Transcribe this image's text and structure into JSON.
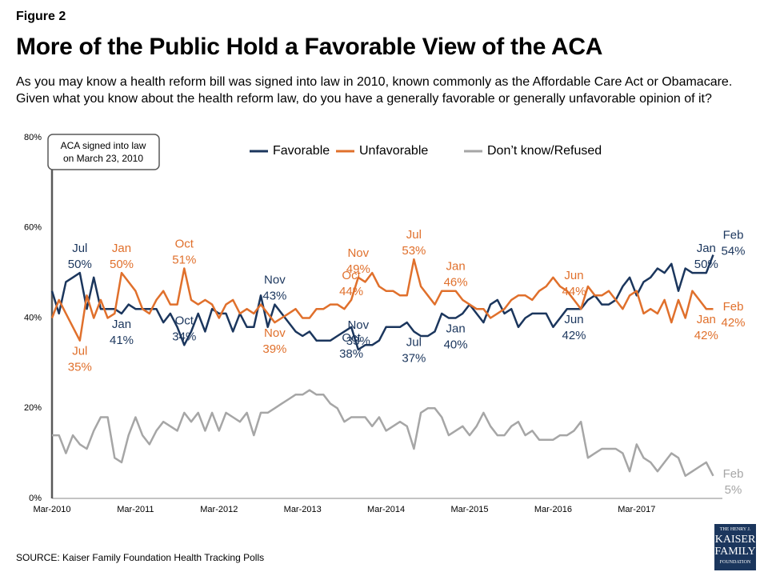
{
  "chart_data": {
    "type": "line",
    "figure_label": "Figure 2",
    "title": "More of the Public Hold a Favorable View of the ACA",
    "subtitle": "As you may know a health reform bill was signed into law in 2010, known commonly as the Affordable Care Act or Obamacare. Given what you know about the health reform law, do you have a generally favorable or generally unfavorable opinion of it?",
    "annotation": [
      "ACA signed into law",
      "on March 23, 2010"
    ],
    "source": "SOURCE: Kaiser Family Foundation Health Tracking Polls",
    "logo": [
      "THE HENRY J.",
      "KAISER",
      "FAMILY",
      "FOUNDATION"
    ],
    "ylim": [
      0,
      80
    ],
    "yticks": [
      {
        "value": 0,
        "label": "0%"
      },
      {
        "value": 20,
        "label": "20%"
      },
      {
        "value": 40,
        "label": "40%"
      },
      {
        "value": 60,
        "label": "60%"
      },
      {
        "value": 80,
        "label": "80%"
      }
    ],
    "grid": false,
    "legend": "top",
    "categories": [
      "Mar-2010",
      null,
      null,
      null,
      null,
      null,
      null,
      null,
      null,
      null,
      null,
      null,
      "Mar-2011",
      null,
      null,
      null,
      null,
      null,
      null,
      null,
      null,
      null,
      null,
      null,
      "Mar-2012",
      null,
      null,
      null,
      null,
      null,
      null,
      null,
      null,
      null,
      null,
      null,
      "Mar-2013",
      null,
      null,
      null,
      null,
      null,
      null,
      null,
      null,
      null,
      null,
      null,
      "Mar-2014",
      null,
      null,
      null,
      null,
      null,
      null,
      null,
      null,
      null,
      null,
      null,
      "Mar-2015",
      null,
      null,
      null,
      null,
      null,
      null,
      null,
      null,
      null,
      null,
      null,
      "Mar-2016",
      null,
      null,
      null,
      null,
      null,
      null,
      null,
      null,
      null,
      null,
      null,
      "Mar-2017",
      null,
      null,
      null,
      null,
      null,
      null,
      null,
      null,
      null,
      null,
      null
    ],
    "series": [
      {
        "name": "Favorable",
        "color": "#1b365d",
        "values": [
          46,
          41,
          48,
          49,
          50,
          42,
          49,
          42,
          42,
          42,
          41,
          43,
          42,
          42,
          42,
          42,
          39,
          41,
          38,
          34,
          37,
          41,
          37,
          42,
          41,
          41,
          37,
          41,
          38,
          38,
          45,
          38,
          43,
          41,
          39,
          37,
          36,
          37,
          35,
          35,
          35,
          36,
          37,
          38,
          33,
          34,
          34,
          35,
          38,
          38,
          38,
          39,
          37,
          36,
          36,
          37,
          41,
          40,
          40,
          41,
          43,
          41,
          39,
          43,
          44,
          41,
          42,
          38,
          40,
          41,
          41,
          41,
          38,
          40,
          42,
          42,
          42,
          44,
          45,
          43,
          43,
          44,
          47,
          49,
          45,
          48,
          49,
          51,
          50,
          52,
          46,
          51,
          50,
          50,
          50,
          54
        ],
        "value_labels": [
          null,
          null,
          null,
          null,
          "Jul 50%",
          null,
          null,
          null,
          null,
          null,
          "Jan 41%",
          null,
          null,
          null,
          null,
          null,
          null,
          null,
          null,
          "Oct 34%",
          null,
          null,
          null,
          null,
          null,
          null,
          null,
          null,
          null,
          null,
          null,
          null,
          "Nov 43%",
          null,
          null,
          null,
          null,
          null,
          null,
          null,
          null,
          null,
          null,
          "Oct 38%",
          "Nov 33%",
          null,
          null,
          null,
          null,
          null,
          null,
          null,
          "Jul 37%",
          null,
          null,
          null,
          null,
          null,
          "Jan 40%",
          null,
          null,
          null,
          null,
          null,
          null,
          null,
          null,
          null,
          null,
          null,
          null,
          null,
          null,
          null,
          null,
          "Jun 42%",
          null,
          null,
          null,
          null,
          null,
          null,
          null,
          null,
          null,
          null,
          null,
          null,
          null,
          null,
          null,
          null,
          null,
          null,
          "Jan 50%",
          "Feb 54%"
        ]
      },
      {
        "name": "Unfavorable",
        "color": "#e0702c",
        "values": [
          40,
          44,
          41,
          38,
          35,
          45,
          40,
          44,
          40,
          41,
          50,
          48,
          46,
          42,
          41,
          44,
          46,
          43,
          43,
          51,
          44,
          43,
          44,
          43,
          40,
          43,
          44,
          41,
          42,
          41,
          43,
          41,
          39,
          40,
          41,
          42,
          40,
          40,
          42,
          42,
          43,
          43,
          42,
          44,
          49,
          48,
          50,
          47,
          46,
          46,
          45,
          45,
          53,
          47,
          45,
          43,
          46,
          46,
          46,
          44,
          43,
          42,
          42,
          40,
          41,
          42,
          44,
          45,
          45,
          44,
          46,
          47,
          49,
          47,
          46,
          44,
          42,
          47,
          45,
          45,
          46,
          44,
          42,
          45,
          46,
          41,
          42,
          41,
          44,
          39,
          44,
          40,
          46,
          44,
          42,
          42
        ],
        "value_labels": [
          null,
          null,
          null,
          null,
          "Jul 35%",
          null,
          null,
          null,
          null,
          null,
          "Jan 50%",
          null,
          null,
          null,
          null,
          null,
          null,
          null,
          null,
          "Oct 51%",
          null,
          null,
          null,
          null,
          null,
          null,
          null,
          null,
          null,
          null,
          null,
          null,
          "Nov 39%",
          null,
          null,
          null,
          null,
          null,
          null,
          null,
          null,
          null,
          null,
          "Oct 44%",
          "Nov 49%",
          null,
          null,
          null,
          null,
          null,
          null,
          null,
          "Jul 53%",
          null,
          null,
          null,
          null,
          null,
          "Jan 46%",
          null,
          null,
          null,
          null,
          null,
          null,
          null,
          null,
          null,
          null,
          null,
          null,
          null,
          null,
          null,
          null,
          "Jun 44%",
          null,
          null,
          null,
          null,
          null,
          null,
          null,
          null,
          null,
          null,
          null,
          null,
          null,
          null,
          null,
          null,
          null,
          null,
          "Jan 42%",
          "Feb 42%"
        ]
      },
      {
        "name": "Don’t know/Refused",
        "color": "#a6a6a6",
        "values": [
          14,
          14,
          10,
          14,
          12,
          11,
          15,
          18,
          18,
          9,
          8,
          14,
          18,
          14,
          12,
          15,
          17,
          16,
          15,
          19,
          17,
          19,
          15,
          19,
          15,
          19,
          18,
          17,
          19,
          14,
          19,
          19,
          20,
          21,
          22,
          23,
          23,
          24,
          23,
          23,
          21,
          20,
          17,
          18,
          18,
          18,
          16,
          18,
          15,
          16,
          17,
          16,
          11,
          19,
          20,
          20,
          18,
          14,
          15,
          16,
          14,
          16,
          19,
          16,
          14,
          14,
          16,
          17,
          14,
          15,
          13,
          13,
          13,
          14,
          14,
          15,
          17,
          9,
          10,
          11,
          11,
          11,
          10,
          6,
          12,
          9,
          8,
          6,
          8,
          10,
          9,
          5,
          6,
          7,
          8,
          5
        ],
        "value_labels": [
          null,
          null,
          null,
          null,
          null,
          null,
          null,
          null,
          null,
          null,
          null,
          null,
          null,
          null,
          null,
          null,
          null,
          null,
          null,
          null,
          null,
          null,
          null,
          null,
          null,
          null,
          null,
          null,
          null,
          null,
          null,
          null,
          null,
          null,
          null,
          null,
          null,
          null,
          null,
          null,
          null,
          null,
          null,
          null,
          null,
          null,
          null,
          null,
          null,
          null,
          null,
          null,
          null,
          null,
          null,
          null,
          null,
          null,
          null,
          null,
          null,
          null,
          null,
          null,
          null,
          null,
          null,
          null,
          null,
          null,
          null,
          null,
          null,
          null,
          null,
          null,
          null,
          null,
          null,
          null,
          null,
          null,
          null,
          null,
          null,
          null,
          null,
          null,
          null,
          null,
          null,
          null,
          null,
          null,
          null,
          "Feb 5%"
        ]
      }
    ]
  }
}
